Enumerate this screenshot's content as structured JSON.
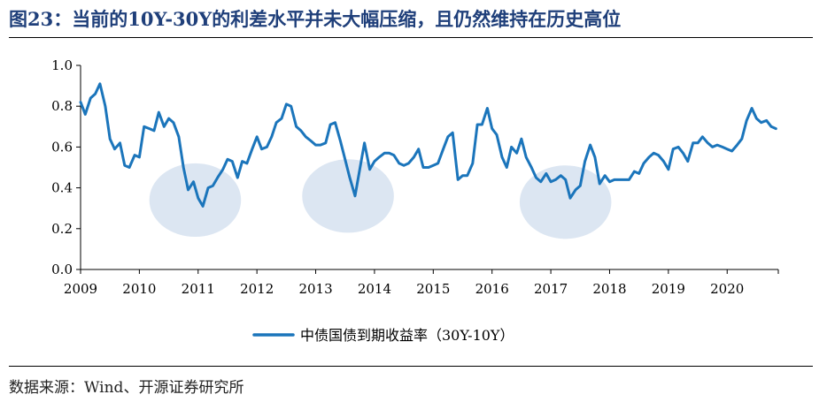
{
  "header": {
    "title": "图23：当前的10Y-30Y的利差水平并未大幅压缩，且仍然维持在历史高位"
  },
  "footer": {
    "source": "数据来源：Wind、开源证券研究所"
  },
  "colors": {
    "line": "#1b75bb",
    "highlight": "#dce6f2",
    "axis": "#000000",
    "title": "#1f3f7a"
  },
  "chart_data": {
    "type": "line",
    "title": "",
    "xlabel": "",
    "ylabel": "",
    "x_ticks": [
      "2009",
      "2010",
      "2011",
      "2012",
      "2013",
      "2014",
      "2015",
      "2016",
      "2017",
      "2018",
      "2019",
      "2020"
    ],
    "y_ticks": [
      "0.0",
      "0.2",
      "0.4",
      "0.6",
      "0.8",
      "1.0"
    ],
    "xlim": [
      2009.0,
      2020.87
    ],
    "ylim": [
      0.0,
      1.0
    ],
    "grid": false,
    "legend_position": "bottom-center",
    "highlights": [
      {
        "x_center": 2010.95,
        "y_center": 0.34,
        "x_halfwidth": 0.78,
        "y_halfwidth": 0.18
      },
      {
        "x_center": 2013.55,
        "y_center": 0.36,
        "x_halfwidth": 0.78,
        "y_halfwidth": 0.18
      },
      {
        "x_center": 2017.25,
        "y_center": 0.33,
        "x_halfwidth": 0.78,
        "y_halfwidth": 0.18
      }
    ],
    "series": [
      {
        "name": "中债国债到期收益率（30Y-10Y）",
        "x": [
          2009.0,
          2009.08,
          2009.17,
          2009.25,
          2009.33,
          2009.42,
          2009.5,
          2009.58,
          2009.67,
          2009.75,
          2009.83,
          2009.92,
          2010.0,
          2010.08,
          2010.17,
          2010.25,
          2010.33,
          2010.42,
          2010.5,
          2010.58,
          2010.67,
          2010.75,
          2010.83,
          2010.92,
          2011.0,
          2011.08,
          2011.17,
          2011.25,
          2011.33,
          2011.42,
          2011.5,
          2011.58,
          2011.67,
          2011.75,
          2011.83,
          2011.92,
          2012.0,
          2012.08,
          2012.17,
          2012.25,
          2012.33,
          2012.42,
          2012.5,
          2012.58,
          2012.67,
          2012.75,
          2012.83,
          2012.92,
          2013.0,
          2013.08,
          2013.17,
          2013.25,
          2013.33,
          2013.42,
          2013.5,
          2013.58,
          2013.67,
          2013.75,
          2013.83,
          2013.92,
          2014.0,
          2014.08,
          2014.17,
          2014.25,
          2014.33,
          2014.42,
          2014.5,
          2014.58,
          2014.67,
          2014.75,
          2014.83,
          2014.92,
          2015.0,
          2015.08,
          2015.17,
          2015.25,
          2015.33,
          2015.42,
          2015.5,
          2015.58,
          2015.67,
          2015.75,
          2015.83,
          2015.92,
          2016.0,
          2016.08,
          2016.17,
          2016.25,
          2016.33,
          2016.42,
          2016.5,
          2016.58,
          2016.67,
          2016.75,
          2016.83,
          2016.92,
          2017.0,
          2017.08,
          2017.17,
          2017.25,
          2017.33,
          2017.42,
          2017.5,
          2017.58,
          2017.67,
          2017.75,
          2017.83,
          2017.92,
          2018.0,
          2018.08,
          2018.17,
          2018.25,
          2018.33,
          2018.42,
          2018.5,
          2018.58,
          2018.67,
          2018.75,
          2018.83,
          2018.92,
          2019.0,
          2019.08,
          2019.17,
          2019.25,
          2019.33,
          2019.42,
          2019.5,
          2019.58,
          2019.67,
          2019.75,
          2019.83,
          2019.92,
          2020.0,
          2020.08,
          2020.17,
          2020.25,
          2020.33,
          2020.42,
          2020.5,
          2020.58,
          2020.67,
          2020.75,
          2020.83
        ],
        "values": [
          0.82,
          0.76,
          0.84,
          0.86,
          0.91,
          0.8,
          0.64,
          0.59,
          0.62,
          0.51,
          0.5,
          0.56,
          0.55,
          0.7,
          0.69,
          0.68,
          0.77,
          0.7,
          0.74,
          0.72,
          0.65,
          0.5,
          0.39,
          0.43,
          0.35,
          0.31,
          0.4,
          0.41,
          0.45,
          0.49,
          0.54,
          0.53,
          0.45,
          0.53,
          0.52,
          0.59,
          0.65,
          0.59,
          0.6,
          0.65,
          0.72,
          0.74,
          0.81,
          0.8,
          0.7,
          0.68,
          0.65,
          0.63,
          0.61,
          0.61,
          0.62,
          0.71,
          0.72,
          0.63,
          0.54,
          0.45,
          0.36,
          0.49,
          0.62,
          0.49,
          0.53,
          0.55,
          0.57,
          0.57,
          0.56,
          0.52,
          0.51,
          0.52,
          0.55,
          0.59,
          0.5,
          0.5,
          0.51,
          0.52,
          0.59,
          0.65,
          0.67,
          0.44,
          0.46,
          0.46,
          0.52,
          0.71,
          0.71,
          0.79,
          0.69,
          0.66,
          0.55,
          0.5,
          0.6,
          0.57,
          0.64,
          0.55,
          0.5,
          0.45,
          0.43,
          0.47,
          0.43,
          0.44,
          0.46,
          0.44,
          0.35,
          0.39,
          0.41,
          0.53,
          0.61,
          0.55,
          0.42,
          0.46,
          0.43,
          0.44,
          0.44,
          0.44,
          0.44,
          0.48,
          0.47,
          0.52,
          0.55,
          0.57,
          0.56,
          0.53,
          0.49,
          0.59,
          0.6,
          0.57,
          0.53,
          0.62,
          0.62,
          0.65,
          0.62,
          0.6,
          0.61,
          0.6,
          0.59,
          0.58,
          0.61,
          0.64,
          0.73,
          0.79,
          0.74,
          0.72,
          0.73,
          0.7,
          0.69
        ]
      }
    ]
  }
}
